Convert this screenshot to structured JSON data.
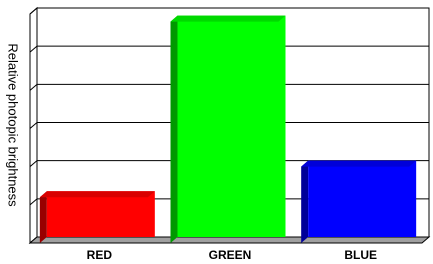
{
  "chart_data": {
    "type": "bar3d",
    "y_label": "Relative photopic brightness",
    "categories": [
      "RED",
      "GREEN",
      "BLUE"
    ],
    "values": [
      1.2,
      5.8,
      2.0
    ],
    "colors": [
      "#ff0000",
      "#00ff00",
      "#0000ff"
    ],
    "ylim": [
      0,
      6
    ],
    "yticks": [
      0,
      1,
      2,
      3,
      4,
      5,
      6
    ],
    "grid": true
  }
}
